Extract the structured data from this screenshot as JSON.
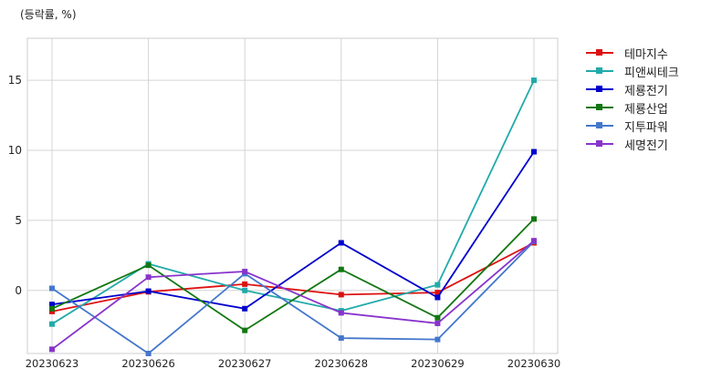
{
  "chart_data": {
    "type": "line",
    "title": "",
    "unit_note": "(등락률, %)",
    "xlabel": "",
    "ylabel": "",
    "categories": [
      "20230623",
      "20230626",
      "20230627",
      "20230628",
      "20230629",
      "20230630"
    ],
    "yticks": [
      0,
      5,
      10,
      15
    ],
    "ylim": [
      -4.5,
      18
    ],
    "grid": true,
    "legend_position": "right",
    "series": [
      {
        "name": "테마지수",
        "color": "#dd1111",
        "values": [
          -1.5,
          -0.1,
          0.45,
          -0.3,
          -0.15,
          3.4
        ]
      },
      {
        "name": "피앤씨테크",
        "color": "#22aaaa",
        "values": [
          -2.4,
          1.9,
          0.0,
          -1.45,
          0.4,
          15.0
        ]
      },
      {
        "name": "제룡전기",
        "color": "#0000cc",
        "values": [
          -1.0,
          -0.05,
          -1.3,
          3.4,
          -0.5,
          9.9
        ]
      },
      {
        "name": "제룡산업",
        "color": "#117711",
        "values": [
          -1.3,
          1.8,
          -2.85,
          1.5,
          -1.95,
          5.1
        ]
      },
      {
        "name": "지투파워",
        "color": "#4477cc",
        "values": [
          0.15,
          -4.5,
          1.2,
          -3.4,
          -3.5,
          3.5
        ]
      },
      {
        "name": "세명전기",
        "color": "#8833cc",
        "values": [
          -4.2,
          0.95,
          1.35,
          -1.6,
          -2.35,
          3.55
        ]
      }
    ]
  }
}
